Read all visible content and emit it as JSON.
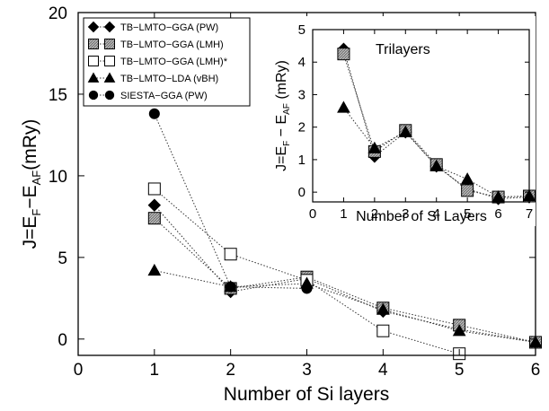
{
  "chart_data": [
    {
      "type": "line",
      "xlabel": "Number of Si layers",
      "ylabel": {
        "main": "J=E",
        "s1": "F",
        "mid": "−E",
        "s2": "AF",
        "unit": "(mRy)"
      },
      "xlim": [
        0,
        6
      ],
      "ylim": [
        -1,
        20
      ],
      "xticks": [
        0,
        1,
        2,
        3,
        4,
        5,
        6
      ],
      "yticks": [
        0,
        5,
        10,
        15,
        20
      ],
      "series": [
        {
          "name": "TB−LMTO−GGA (PW)",
          "marker": "diamond",
          "x": [
            1,
            2,
            3,
            4,
            5,
            6
          ],
          "y": [
            8.2,
            2.9,
            3.7,
            1.7,
            0.6,
            -0.2
          ]
        },
        {
          "name": "TB−LMTO−GGA (LMH)",
          "marker": "square-hatched",
          "x": [
            1,
            2,
            3,
            4,
            5,
            6
          ],
          "y": [
            7.4,
            3.1,
            3.8,
            1.9,
            0.85,
            -0.2
          ]
        },
        {
          "name": "TB−LMTO−GGA (LMH)*",
          "marker": "square-open",
          "x": [
            1,
            2,
            3,
            4,
            5
          ],
          "y": [
            9.2,
            5.2,
            3.6,
            0.5,
            -0.9
          ]
        },
        {
          "name": "TB−LMTO−LDA (vBH)",
          "marker": "triangle",
          "x": [
            1,
            2,
            3,
            4,
            5,
            6
          ],
          "y": [
            4.2,
            3.2,
            3.4,
            1.8,
            0.5,
            -0.2
          ]
        },
        {
          "name": "SIESTA−GGA (PW)",
          "marker": "circle",
          "x": [
            1,
            2,
            3
          ],
          "y": [
            13.8,
            3.2,
            3.1
          ]
        }
      ]
    },
    {
      "type": "line",
      "title": "Trilayers",
      "xlabel": "Number of Si Layers",
      "ylabel": {
        "main": "J=E",
        "s1": "F",
        "mid": " − E",
        "s2": "AF",
        "unit": " (mRy)"
      },
      "xlim": [
        0,
        7
      ],
      "ylim": [
        -0.3,
        5
      ],
      "xticks": [
        0,
        1,
        2,
        3,
        4,
        5,
        6,
        7
      ],
      "yticks": [
        0,
        1,
        2,
        3,
        4,
        5
      ],
      "series": [
        {
          "marker": "diamond",
          "x": [
            1,
            2,
            3,
            4,
            5,
            6,
            7
          ],
          "y": [
            4.4,
            1.1,
            1.85,
            0.8,
            0.1,
            -0.2,
            -0.15
          ]
        },
        {
          "marker": "square-hatched",
          "x": [
            1,
            2,
            3,
            4,
            5,
            6,
            7
          ],
          "y": [
            4.25,
            1.25,
            1.9,
            0.85,
            0.05,
            -0.15,
            -0.12
          ]
        },
        {
          "marker": "triangle",
          "x": [
            1,
            2,
            3,
            4,
            5,
            6,
            7
          ],
          "y": [
            2.6,
            1.35,
            1.85,
            0.8,
            0.4,
            -0.15,
            -0.12
          ]
        }
      ]
    }
  ]
}
